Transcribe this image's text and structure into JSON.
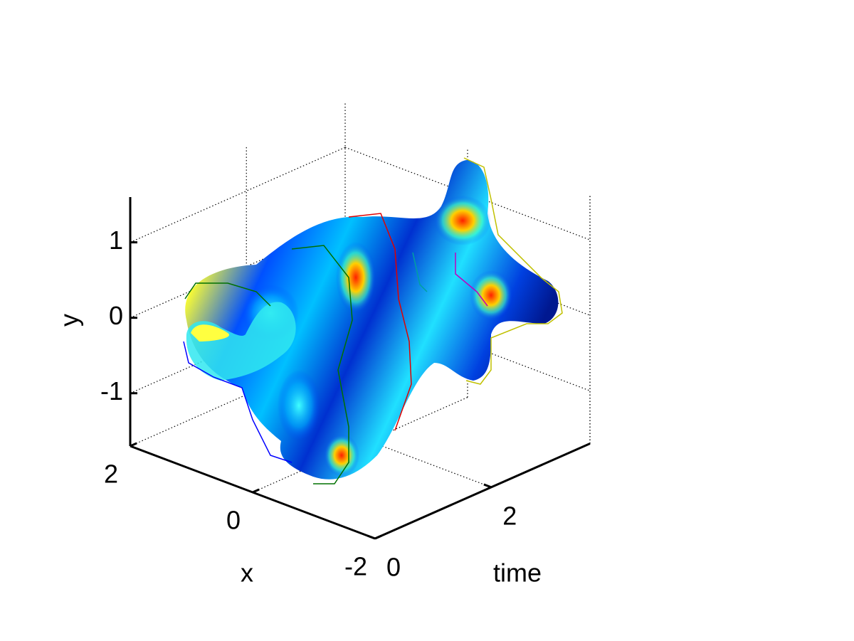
{
  "chart_data": {
    "type": "surface3d",
    "xlabel": "x",
    "ylabel": "y",
    "zlabel": "time",
    "xlim": [
      -2,
      2
    ],
    "xticks": [
      -2,
      0,
      2
    ],
    "ylim": [
      -1.7,
      1.6
    ],
    "yticks": [
      -1,
      0,
      1
    ],
    "zlim": [
      0,
      3.7
    ],
    "zticks": [
      0,
      2
    ],
    "grid": true
  }
}
